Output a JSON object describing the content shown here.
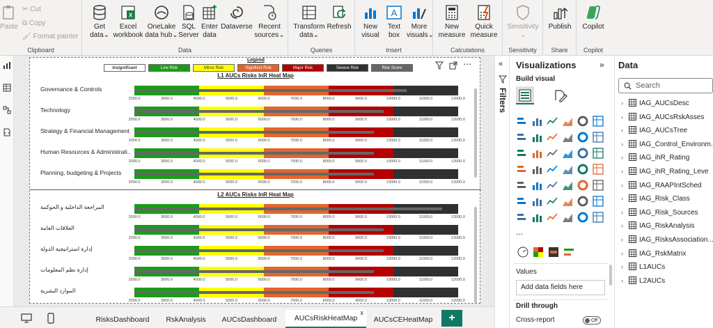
{
  "ribbon": {
    "clipboard": {
      "paste": "Paste",
      "cut": "Cut",
      "copy": "Copy",
      "format_painter": "Format painter",
      "group": "Clipboard"
    },
    "data": {
      "get_data": "Get",
      "get_data2": "data",
      "excel": "Excel",
      "excel2": "workbook",
      "onelake": "OneLake",
      "onelake2": "data hub",
      "sql": "SQL",
      "sql2": "Server",
      "enter": "Enter",
      "enter2": "data",
      "dataverse": "Dataverse",
      "recent": "Recent",
      "recent2": "sources",
      "group": "Data"
    },
    "queries": {
      "transform": "Transform",
      "transform2": "data",
      "refresh": "Refresh",
      "group": "Queries"
    },
    "insert": {
      "new_visual": "New",
      "new_visual2": "visual",
      "text_box": "Text",
      "text_box2": "box",
      "more_visuals": "More",
      "more_visuals2": "visuals",
      "group": "Insert"
    },
    "calculations": {
      "new_measure": "New",
      "new_measure2": "measure",
      "quick_measure": "Quick",
      "quick_measure2": "measure",
      "group": "Calculations"
    },
    "sensitivity": {
      "label": "Sensitivity",
      "group": "Sensitivity"
    },
    "share": {
      "publish": "Publish",
      "group": "Share"
    },
    "copilot": {
      "label": "Copilot",
      "group": "Copilot"
    }
  },
  "report": {
    "legend_title": "Legend",
    "legend_items": [
      {
        "label": "Insignificant",
        "color": "#ffffff",
        "text_color": "#333333"
      },
      {
        "label": "Low Risk",
        "color": "#1a9c1a",
        "text_color": "#ffffff"
      },
      {
        "label": "Minor Risk",
        "color": "#ffff00",
        "text_color": "#333333"
      },
      {
        "label": "Significnt Risk",
        "color": "#e0662d",
        "text_color": "#ffffff"
      },
      {
        "label": "Major Risk",
        "color": "#b30000",
        "text_color": "#ffffff"
      },
      {
        "label": "Severe Risk",
        "color": "#303030",
        "text_color": "#ffffff"
      },
      {
        "label": "Risk Score",
        "color": "#666666",
        "text_color": "#ffffff"
      }
    ],
    "band_colors": [
      "#1a9c1a",
      "#ffff00",
      "#e0662d",
      "#b30000",
      "#303030"
    ],
    "ticks": [
      "2000.0",
      "3000.0",
      "4000.0",
      "5000.0",
      "6000.0",
      "7000.0",
      "8000.0",
      "9000.0",
      "10000.0",
      "11000.0",
      "12000.0"
    ],
    "l1": {
      "title": "L1 AUCs Risks InR Heat Map",
      "rows": [
        {
          "label": "Governance & Controls",
          "value": 10400
        },
        {
          "label": "Technology",
          "value": 9700
        },
        {
          "label": "Strategy & Financial Management",
          "value": 9400
        },
        {
          "label": "Human Resources & Administrati...",
          "value": 9400
        },
        {
          "label": "Planning, budgeting & Projects",
          "value": 9400
        }
      ]
    },
    "l2": {
      "title": "L2 AUCs Risks InR Heat Map",
      "rows": [
        {
          "label": "المراجعة الداخلية و الحوكمة",
          "value": 11500
        },
        {
          "label": "العلاقات العامة",
          "value": 9700
        },
        {
          "label": "إدارة استراتيجية الدولة",
          "value": 9700
        },
        {
          "label": "إدارة نظم المعلومات",
          "value": 9400
        },
        {
          "label": "الموارد البشرية",
          "value": 9400
        }
      ]
    }
  },
  "filters": {
    "label": "Filters"
  },
  "viz_pane": {
    "title": "Visualizations",
    "build_visual": "Build visual",
    "values_label": "Values",
    "values_placeholder": "Add data fields here",
    "drill_through": "Drill through",
    "cross_report": "Cross-report",
    "toggle": "Off",
    "more": "..."
  },
  "data_pane": {
    "title": "Data",
    "search_placeholder": "Search",
    "tables": [
      "IAG_AUCsDesc",
      "IAG_AUCsRskAsses",
      "IAG_AUCsTree",
      "IAG_Control_Environm...",
      "IAG_ihR_Rating",
      "IAG_ihR_Rating_Leve",
      "IAG_RAAPIntSched",
      "IAG_Risk_Class",
      "IAG_Risk_Sources",
      "IAG_RiskAnalysis",
      "IAG_RisksAssociation...",
      "IAG_RskMatrix",
      "L1AUCs",
      "L2AUCs"
    ]
  },
  "tabs": {
    "pages": [
      {
        "label": "RisksDashboard",
        "active": false
      },
      {
        "label": "RskAnalysis",
        "active": false
      },
      {
        "label": "AUCsDashboard",
        "active": false
      },
      {
        "label": "AUCsRiskHeatMap",
        "active": true
      },
      {
        "label": "AUCsCEHeatMap",
        "active": false
      }
    ],
    "add": "+",
    "close": "x"
  }
}
